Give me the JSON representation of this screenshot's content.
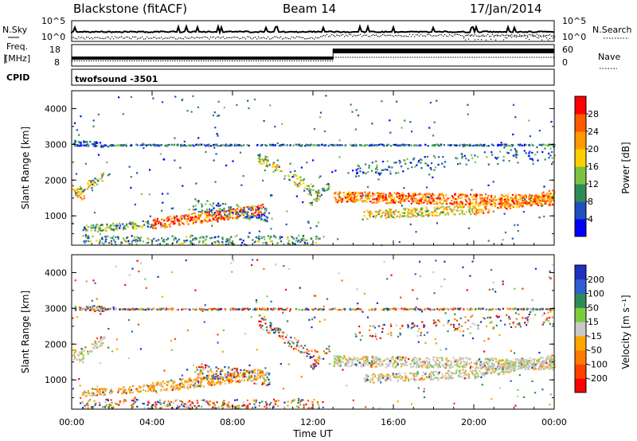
{
  "header": {
    "title": "Blackstone (fitACF)",
    "beam": "Beam 14",
    "date": "17/Jan/2014"
  },
  "noise_panel": {
    "left_label": "N.Sky",
    "right_label": "N.Search",
    "left_ticks": [
      "10^5",
      "10^0"
    ],
    "right_ticks": [
      "10^5",
      "10^0"
    ]
  },
  "freq_panel": {
    "left_label_line1": "Freq.",
    "left_label_line2": "[MHz]",
    "right_label": "Nave",
    "left_ticks": [
      "18",
      "8"
    ],
    "right_ticks": [
      "60",
      "0"
    ]
  },
  "cpid_panel": {
    "label": "CPID",
    "program": "twofsound -3501"
  },
  "x_axis": {
    "title": "Time UT",
    "ticks": [
      "00:00",
      "04:00",
      "08:00",
      "12:00",
      "16:00",
      "20:00",
      "00:00"
    ]
  },
  "chart_data": [
    {
      "type": "heatmap",
      "quantity": "Power",
      "ylabel": "Slant Range [km]",
      "yticks": [
        1000,
        2000,
        3000,
        4000
      ],
      "ylim": [
        180,
        4500
      ],
      "xlim_hours": [
        0,
        24
      ],
      "colorbar_label": "Power [dB]",
      "colorbar_ticks": [
        "4",
        "8",
        "12",
        "16",
        "20",
        "24",
        "28"
      ],
      "colorbar_colors": [
        "#0000ff",
        "#1f4fbf",
        "#2e8b57",
        "#7cc242",
        "#ffd000",
        "#ff9a00",
        "#ff5a00",
        "#ff0000"
      ]
    },
    {
      "type": "heatmap",
      "quantity": "Velocity",
      "ylabel": "Slant Range [km]",
      "yticks": [
        1000,
        2000,
        3000,
        4000
      ],
      "ylim": [
        180,
        4500
      ],
      "xlim_hours": [
        0,
        24
      ],
      "colorbar_label": "Velocity [m s⁻¹]",
      "colorbar_ticks": [
        "200",
        "100",
        "50",
        "15",
        "-15",
        "-50",
        "-100",
        "-200"
      ],
      "colorbar_colors": [
        "#1f2fbf",
        "#2e5fd0",
        "#2e8b57",
        "#7ccd3c",
        "#c8c8c8",
        "#ffa500",
        "#ff7a00",
        "#ff4000",
        "#ff0000"
      ]
    }
  ]
}
